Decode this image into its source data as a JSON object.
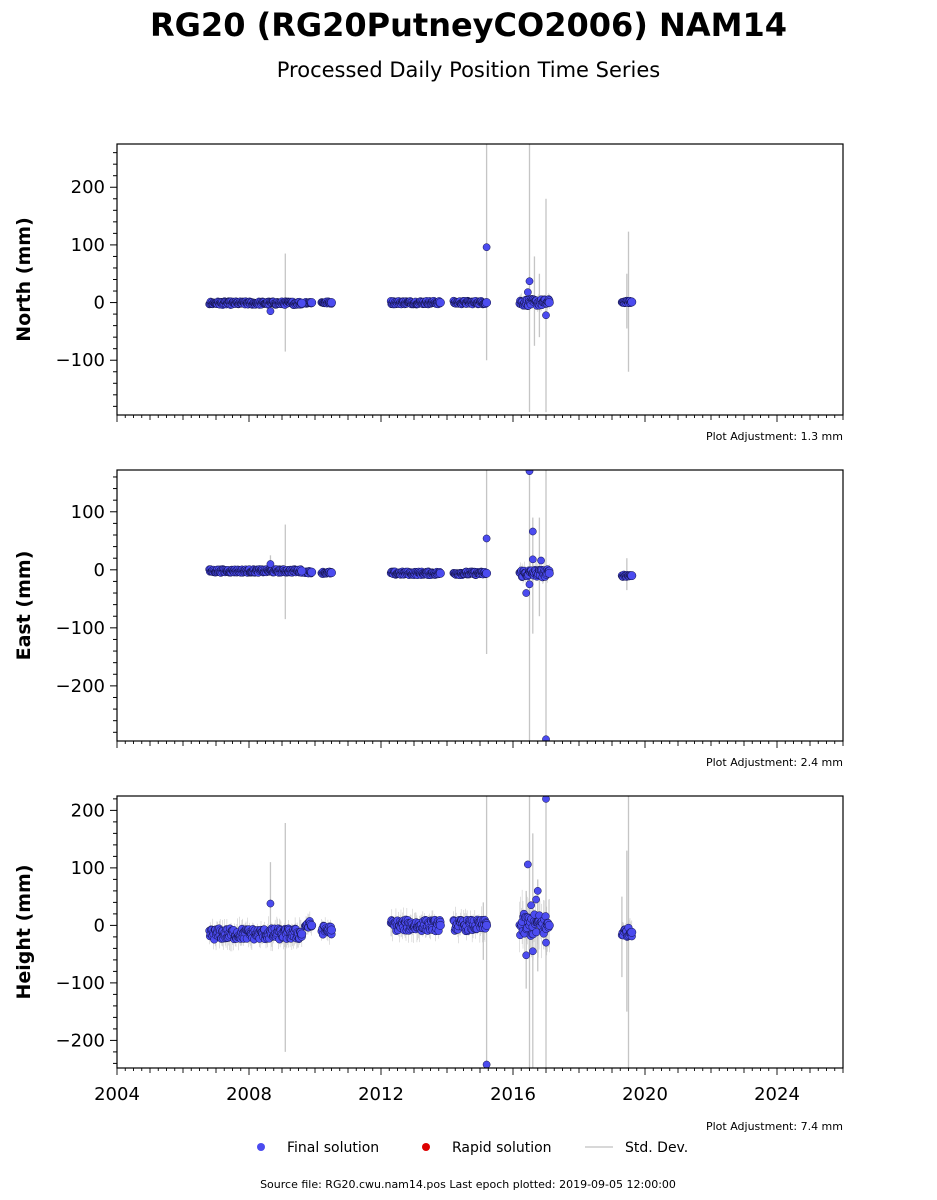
{
  "title": "RG20 (RG20PutneyCO2006) NAM14",
  "subtitle": "Processed Daily Position Time Series",
  "source_text": "Source file: RG20.cwu.nam14.pos  Last epoch plotted: 2019-09-05 12:00:00",
  "legend": {
    "final": "Final solution",
    "rapid": "Rapid solution",
    "std": "Std. Dev."
  },
  "colors": {
    "final": "#4b4bef",
    "rapid": "#dd0000",
    "std": "#bbbbbb"
  },
  "chart_data": {
    "type": "scatter",
    "xlim": [
      2004,
      2026
    ],
    "xticks": [
      2004,
      2008,
      2012,
      2016,
      2020,
      2024
    ],
    "panels": [
      {
        "key": "north",
        "ylabel": "North (mm)",
        "ylim": [
          -195,
          275
        ],
        "yticks": [
          -100,
          0,
          100,
          200
        ],
        "adjustment": "Plot Adjustment: 1.3 mm",
        "segments": [
          {
            "x0": 2006.8,
            "x1": 2009.6,
            "base": -1,
            "spread": 3
          },
          {
            "x0": 2009.7,
            "x1": 2009.9,
            "base": 0,
            "spread": 2
          },
          {
            "x0": 2010.2,
            "x1": 2010.5,
            "base": 0,
            "spread": 2
          },
          {
            "x0": 2012.3,
            "x1": 2013.8,
            "base": 0,
            "spread": 3
          },
          {
            "x0": 2014.2,
            "x1": 2015.2,
            "base": 0,
            "spread": 3
          },
          {
            "x0": 2016.2,
            "x1": 2017.1,
            "base": 0,
            "spread": 6
          },
          {
            "x0": 2019.3,
            "x1": 2019.6,
            "base": 1,
            "spread": 2
          }
        ],
        "outliers": [
          {
            "x": 2008.65,
            "y": -15
          },
          {
            "x": 2015.2,
            "y": 96
          },
          {
            "x": 2016.5,
            "y": 37
          },
          {
            "x": 2016.45,
            "y": 18
          },
          {
            "x": 2017.0,
            "y": -22
          }
        ],
        "errbars": [
          {
            "x": 2009.1,
            "lo": -85,
            "hi": 85
          },
          {
            "x": 2015.2,
            "lo": -100,
            "hi": 275
          },
          {
            "x": 2016.5,
            "lo": -190,
            "hi": 275
          },
          {
            "x": 2016.65,
            "lo": -75,
            "hi": 80
          },
          {
            "x": 2016.8,
            "lo": -60,
            "hi": 50
          },
          {
            "x": 2017.0,
            "lo": -190,
            "hi": 180
          },
          {
            "x": 2019.5,
            "lo": -120,
            "hi": 123
          },
          {
            "x": 2019.45,
            "lo": -45,
            "hi": 50
          }
        ]
      },
      {
        "key": "east",
        "ylabel": "East (mm)",
        "ylim": [
          -295,
          172
        ],
        "yticks": [
          -200,
          -100,
          0,
          100
        ],
        "adjustment": "Plot Adjustment: 2.4 mm",
        "segments": [
          {
            "x0": 2006.8,
            "x1": 2009.6,
            "base": -2,
            "spread": 3
          },
          {
            "x0": 2009.7,
            "x1": 2009.9,
            "base": -4,
            "spread": 2
          },
          {
            "x0": 2010.2,
            "x1": 2010.5,
            "base": -5,
            "spread": 2
          },
          {
            "x0": 2012.3,
            "x1": 2013.8,
            "base": -6,
            "spread": 3
          },
          {
            "x0": 2014.2,
            "x1": 2015.2,
            "base": -6,
            "spread": 3
          },
          {
            "x0": 2016.2,
            "x1": 2017.1,
            "base": -6,
            "spread": 7
          },
          {
            "x0": 2019.3,
            "x1": 2019.6,
            "base": -10,
            "spread": 2
          }
        ],
        "outliers": [
          {
            "x": 2008.65,
            "y": 10
          },
          {
            "x": 2015.2,
            "y": 54
          },
          {
            "x": 2016.5,
            "y": 170
          },
          {
            "x": 2016.6,
            "y": 66
          },
          {
            "x": 2016.4,
            "y": -40
          },
          {
            "x": 2016.5,
            "y": -25
          },
          {
            "x": 2016.6,
            "y": 18
          },
          {
            "x": 2016.85,
            "y": 16
          },
          {
            "x": 2017.0,
            "y": -292
          }
        ],
        "errbars": [
          {
            "x": 2008.65,
            "lo": -5,
            "hi": 25
          },
          {
            "x": 2009.1,
            "lo": -85,
            "hi": 78
          },
          {
            "x": 2015.2,
            "lo": -145,
            "hi": 172
          },
          {
            "x": 2016.5,
            "lo": -295,
            "hi": 172
          },
          {
            "x": 2016.6,
            "lo": -110,
            "hi": 90
          },
          {
            "x": 2016.8,
            "lo": -80,
            "hi": 90
          },
          {
            "x": 2017.0,
            "lo": -295,
            "hi": 172
          },
          {
            "x": 2019.45,
            "lo": -35,
            "hi": 20
          }
        ]
      },
      {
        "key": "height",
        "ylabel": "Height (mm)",
        "ylim": [
          -248,
          225
        ],
        "yticks": [
          -200,
          -100,
          0,
          100,
          200
        ],
        "adjustment": "Plot Adjustment: 7.4 mm",
        "segments": [
          {
            "x0": 2006.8,
            "x1": 2009.6,
            "base": -15,
            "spread": 10
          },
          {
            "x0": 2009.7,
            "x1": 2009.9,
            "base": 0,
            "spread": 8
          },
          {
            "x0": 2010.2,
            "x1": 2010.5,
            "base": -8,
            "spread": 8
          },
          {
            "x0": 2012.3,
            "x1": 2013.8,
            "base": 0,
            "spread": 10
          },
          {
            "x0": 2014.2,
            "x1": 2015.2,
            "base": 0,
            "spread": 10
          },
          {
            "x0": 2016.2,
            "x1": 2017.1,
            "base": 0,
            "spread": 20
          },
          {
            "x0": 2019.3,
            "x1": 2019.6,
            "base": -12,
            "spread": 8
          }
        ],
        "outliers": [
          {
            "x": 2008.65,
            "y": 38
          },
          {
            "x": 2015.2,
            "y": -242
          },
          {
            "x": 2016.45,
            "y": 106
          },
          {
            "x": 2016.55,
            "y": 35
          },
          {
            "x": 2016.75,
            "y": 60
          },
          {
            "x": 2016.7,
            "y": 45
          },
          {
            "x": 2016.4,
            "y": -52
          },
          {
            "x": 2016.6,
            "y": -45
          },
          {
            "x": 2017.0,
            "y": 220
          },
          {
            "x": 2017.0,
            "y": -30
          }
        ],
        "errbars": [
          {
            "x": 2008.65,
            "lo": -10,
            "hi": 110
          },
          {
            "x": 2009.1,
            "lo": -220,
            "hi": 178
          },
          {
            "x": 2015.1,
            "lo": -60,
            "hi": 40
          },
          {
            "x": 2015.2,
            "lo": -248,
            "hi": 225
          },
          {
            "x": 2016.4,
            "lo": -110,
            "hi": 60
          },
          {
            "x": 2016.5,
            "lo": -248,
            "hi": 225
          },
          {
            "x": 2016.6,
            "lo": -248,
            "hi": 160
          },
          {
            "x": 2016.75,
            "lo": -80,
            "hi": 80
          },
          {
            "x": 2017.0,
            "lo": -248,
            "hi": 225
          },
          {
            "x": 2019.3,
            "lo": -90,
            "hi": 50
          },
          {
            "x": 2019.5,
            "lo": -248,
            "hi": 225
          },
          {
            "x": 2019.45,
            "lo": -150,
            "hi": 130
          }
        ]
      }
    ]
  }
}
